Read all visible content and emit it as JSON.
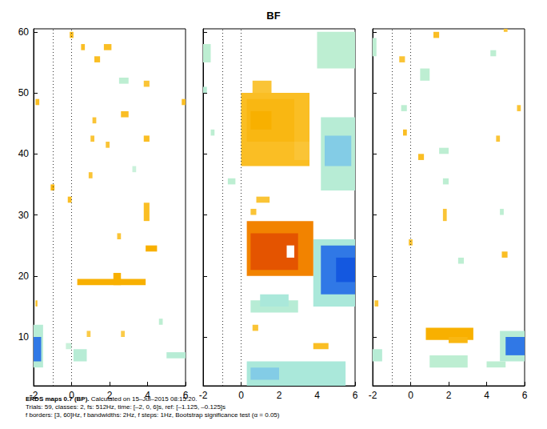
{
  "title": "BF",
  "footer_bold": "ERDS maps 0.7 (BP).",
  "footer": [
    "Calculated on 15–Jul–2015 08:15:20.",
    "Trials: 59, classes: 2, fs: 512Hz, time: [–2, 0, 6]s, ref: [–1.125, –0.125]s",
    "f borders: [3, 60]Hz, f bandwidths: 2Hz, f steps: 1Hz, Bootstrap significance test (α = 0.05)"
  ],
  "chart_data": [
    {
      "type": "heatmap",
      "xlim": [
        -2,
        6
      ],
      "xticks": [
        -2,
        0,
        2,
        4,
        6
      ],
      "ylim": [
        2,
        60.5
      ],
      "yticks": [
        10,
        20,
        30,
        40,
        50,
        60
      ],
      "vlines": [
        -1,
        0
      ],
      "clim": [
        -1,
        1
      ],
      "tick_labels": true,
      "cells": [
        [
          5,
          12,
          -2,
          -1.5,
          0.3
        ],
        [
          6,
          10,
          -2,
          -1.6,
          0.9
        ],
        [
          6,
          8,
          0.1,
          0.8,
          0.3
        ],
        [
          6.5,
          7.5,
          5,
          6,
          0.3
        ],
        [
          51.5,
          52.5,
          2.5,
          3.0,
          0.25
        ],
        [
          12,
          13,
          4.6,
          4.8,
          0.25
        ],
        [
          37,
          38,
          3.2,
          3.4,
          0.2
        ],
        [
          8,
          9,
          -0.3,
          0,
          0.2
        ],
        [
          18.5,
          19.5,
          0.3,
          3.9,
          -0.5
        ],
        [
          18.5,
          20.5,
          2.2,
          2.6,
          -0.5
        ],
        [
          24,
          25,
          3.9,
          4.5,
          -0.5
        ],
        [
          29,
          32,
          3.8,
          4.1,
          -0.4
        ],
        [
          42,
          43,
          3.8,
          4.1,
          -0.4
        ],
        [
          48,
          49,
          -1.9,
          -1.7,
          -0.4
        ],
        [
          57,
          58,
          0.5,
          0.7,
          -0.4
        ],
        [
          55,
          56,
          1.2,
          1.5,
          -0.4
        ],
        [
          57,
          58,
          1.7,
          2.1,
          -0.4
        ],
        [
          46,
          47,
          2.6,
          3.0,
          -0.4
        ],
        [
          42,
          43,
          1.0,
          1.2,
          -0.35
        ],
        [
          34,
          35,
          -1.1,
          -0.9,
          -0.45
        ],
        [
          32,
          33,
          -0.2,
          0,
          -0.4
        ],
        [
          15,
          16,
          -1.9,
          -1.8,
          -0.4
        ],
        [
          48,
          49,
          5.8,
          6,
          -0.4
        ],
        [
          45,
          46,
          1.1,
          1.3,
          -0.35
        ],
        [
          41,
          42,
          1.8,
          2.0,
          -0.35
        ],
        [
          26,
          27,
          2.4,
          2.6,
          -0.35
        ],
        [
          36,
          37,
          0.9,
          1.1,
          -0.35
        ],
        [
          10,
          11,
          0.8,
          1.0,
          -0.3
        ],
        [
          10,
          11,
          2.6,
          2.8,
          -0.3
        ],
        [
          51,
          52,
          3.8,
          4.1,
          -0.35
        ],
        [
          59,
          60,
          -0.1,
          0.1,
          -0.4
        ]
      ]
    },
    {
      "type": "heatmap",
      "xlim": [
        -2,
        6
      ],
      "xticks": [
        -2,
        0,
        2,
        4,
        6
      ],
      "ylim": [
        2,
        60.5
      ],
      "yticks": [
        10,
        20,
        30,
        40,
        50,
        60
      ],
      "vlines": [
        -1,
        0
      ],
      "clim": [
        -1,
        1
      ],
      "tick_labels": "x",
      "cells": [
        [
          15,
          26,
          3.8,
          6,
          0.4
        ],
        [
          14,
          16,
          0.5,
          3,
          0.3
        ],
        [
          2,
          6,
          0.3,
          5.5,
          0.4
        ],
        [
          34,
          46,
          4.2,
          6,
          0.3
        ],
        [
          54,
          60,
          4.0,
          6,
          0.25
        ],
        [
          50,
          51,
          -2,
          -1.8,
          0.3
        ],
        [
          55,
          58,
          -2,
          -1.6,
          0.25
        ],
        [
          35,
          36,
          -0.7,
          -0.3,
          0.25
        ],
        [
          43,
          44,
          -1.6,
          -1.4,
          0.25
        ],
        [
          15,
          17,
          1.0,
          2.5,
          0.4
        ],
        [
          3,
          5,
          0.5,
          2.0,
          0.6
        ],
        [
          38,
          43,
          4.4,
          5.8,
          0.6
        ],
        [
          17,
          25,
          4.2,
          6,
          0.9
        ],
        [
          19,
          23,
          5.0,
          6,
          1.0
        ],
        [
          38,
          50,
          0,
          3.6,
          -0.4
        ],
        [
          42,
          49,
          0.3,
          2.8,
          -0.45
        ],
        [
          44,
          47,
          0.5,
          1.6,
          -0.5
        ],
        [
          39,
          42,
          2.8,
          3.6,
          -0.35
        ],
        [
          50,
          52,
          0.6,
          1.6,
          -0.35
        ],
        [
          32,
          33,
          0.8,
          1.5,
          -0.35
        ],
        [
          30,
          31,
          0.5,
          0.8,
          -0.35
        ],
        [
          8,
          9,
          3.8,
          4.6,
          -0.4
        ],
        [
          11,
          12,
          0.6,
          0.9,
          -0.35
        ],
        [
          20,
          29,
          0.3,
          3.8,
          -0.7
        ],
        [
          21,
          27,
          0.5,
          3.0,
          -0.85
        ],
        [
          23,
          25,
          2.4,
          2.8,
          0
        ]
      ]
    },
    {
      "type": "heatmap",
      "xlim": [
        -2,
        6
      ],
      "xticks": [
        -2,
        0,
        2,
        4,
        6
      ],
      "ylim": [
        2,
        60.5
      ],
      "yticks": [
        10,
        20,
        30,
        40,
        50,
        60
      ],
      "vlines": [
        -1,
        0
      ],
      "clim": [
        -1,
        1
      ],
      "tick_labels": "x",
      "cells": [
        [
          6,
          11,
          4.7,
          6,
          0.3
        ],
        [
          5,
          7,
          1,
          3,
          0.25
        ],
        [
          6,
          8,
          -2,
          -1.5,
          0.3
        ],
        [
          5,
          6,
          4,
          5,
          0.25
        ],
        [
          52,
          54,
          0.5,
          1,
          0.25
        ],
        [
          56,
          59,
          -2,
          -1.8,
          0.25
        ],
        [
          40,
          41,
          1.5,
          2,
          0.25
        ],
        [
          47,
          48,
          -0.5,
          -0.2,
          0.25
        ],
        [
          56,
          57,
          4.2,
          4.5,
          0.25
        ],
        [
          35,
          36,
          1.7,
          2,
          0.25
        ],
        [
          30,
          31,
          4.7,
          4.9,
          0.25
        ],
        [
          22,
          23,
          2.5,
          2.8,
          0.25
        ],
        [
          7,
          10,
          5.0,
          6,
          0.9
        ],
        [
          9.5,
          11.5,
          0.8,
          3.3,
          -0.5
        ],
        [
          9,
          10,
          2,
          3,
          -0.45
        ],
        [
          59,
          60,
          1.2,
          1.5,
          -0.4
        ],
        [
          55,
          56,
          -0.6,
          -0.3,
          -0.35
        ],
        [
          43,
          44,
          -0.4,
          -0.2,
          -0.4
        ],
        [
          39,
          40,
          0.4,
          0.7,
          -0.4
        ],
        [
          29,
          31,
          1.7,
          1.9,
          -0.35
        ],
        [
          25,
          26,
          -0.1,
          0.1,
          -0.35
        ],
        [
          23,
          24,
          4.8,
          5.1,
          -0.4
        ],
        [
          47,
          48,
          5.6,
          5.8,
          -0.35
        ],
        [
          15,
          16,
          -1.9,
          -1.7,
          -0.35
        ],
        [
          60,
          61,
          4.9,
          5.1,
          -0.35
        ],
        [
          42,
          43,
          4.5,
          4.7,
          -0.35
        ]
      ]
    }
  ]
}
